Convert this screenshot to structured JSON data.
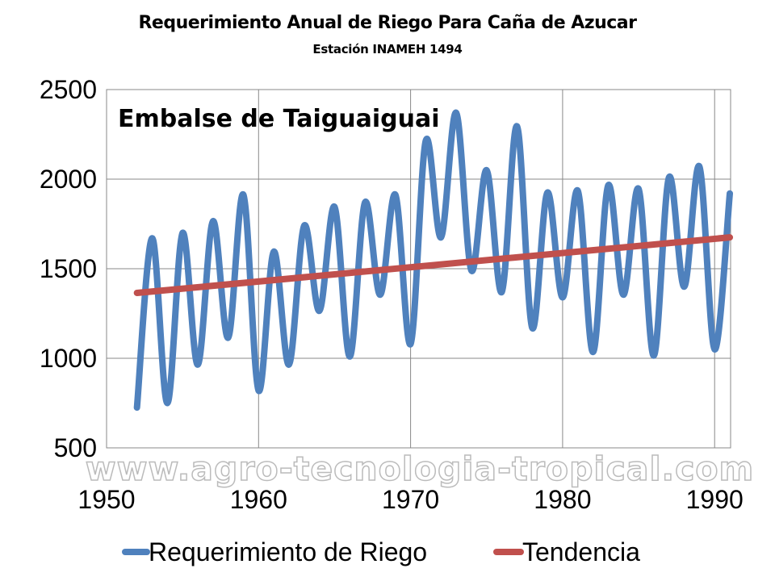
{
  "chart_data": {
    "type": "line",
    "title": "Requerimiento Anual de Riego Para Caña de Azucar",
    "subtitle": "Estación INAMEH 1494",
    "annotation": "Embalse de Taiguaiguai",
    "watermark": "www.agro-tecnologia-tropical.com",
    "xlim": [
      1950,
      1991
    ],
    "ylim": [
      500,
      2500
    ],
    "x_ticks": [
      "1950",
      "1960",
      "1970",
      "1980",
      "1990"
    ],
    "y_ticks": [
      "500",
      "1000",
      "1500",
      "2000",
      "2500"
    ],
    "grid": true,
    "legend_position": "bottom",
    "x": [
      1952,
      1953,
      1954,
      1955,
      1956,
      1957,
      1958,
      1959,
      1960,
      1961,
      1962,
      1963,
      1964,
      1965,
      1966,
      1967,
      1968,
      1969,
      1970,
      1971,
      1972,
      1973,
      1974,
      1975,
      1976,
      1977,
      1978,
      1979,
      1980,
      1981,
      1982,
      1983,
      1984,
      1985,
      1986,
      1987,
      1988,
      1989,
      1990,
      1991
    ],
    "series": [
      {
        "name": "Requerimiento de Riego",
        "color": "#4F81BD",
        "values": [
          725,
          1670,
          750,
          1700,
          965,
          1765,
          1115,
          1913,
          820,
          1595,
          965,
          1740,
          1265,
          1845,
          1010,
          1870,
          1355,
          1913,
          1080,
          2215,
          1675,
          2370,
          1490,
          2050,
          1370,
          2295,
          1170,
          1925,
          1340,
          1935,
          1035,
          1965,
          1355,
          1945,
          1015,
          2010,
          1400,
          2070,
          1050,
          1920
        ]
      },
      {
        "name": "Tendencia",
        "color": "#C0504D",
        "values_at_ends": {
          "1952": 1365,
          "1991": 1675
        }
      }
    ]
  }
}
